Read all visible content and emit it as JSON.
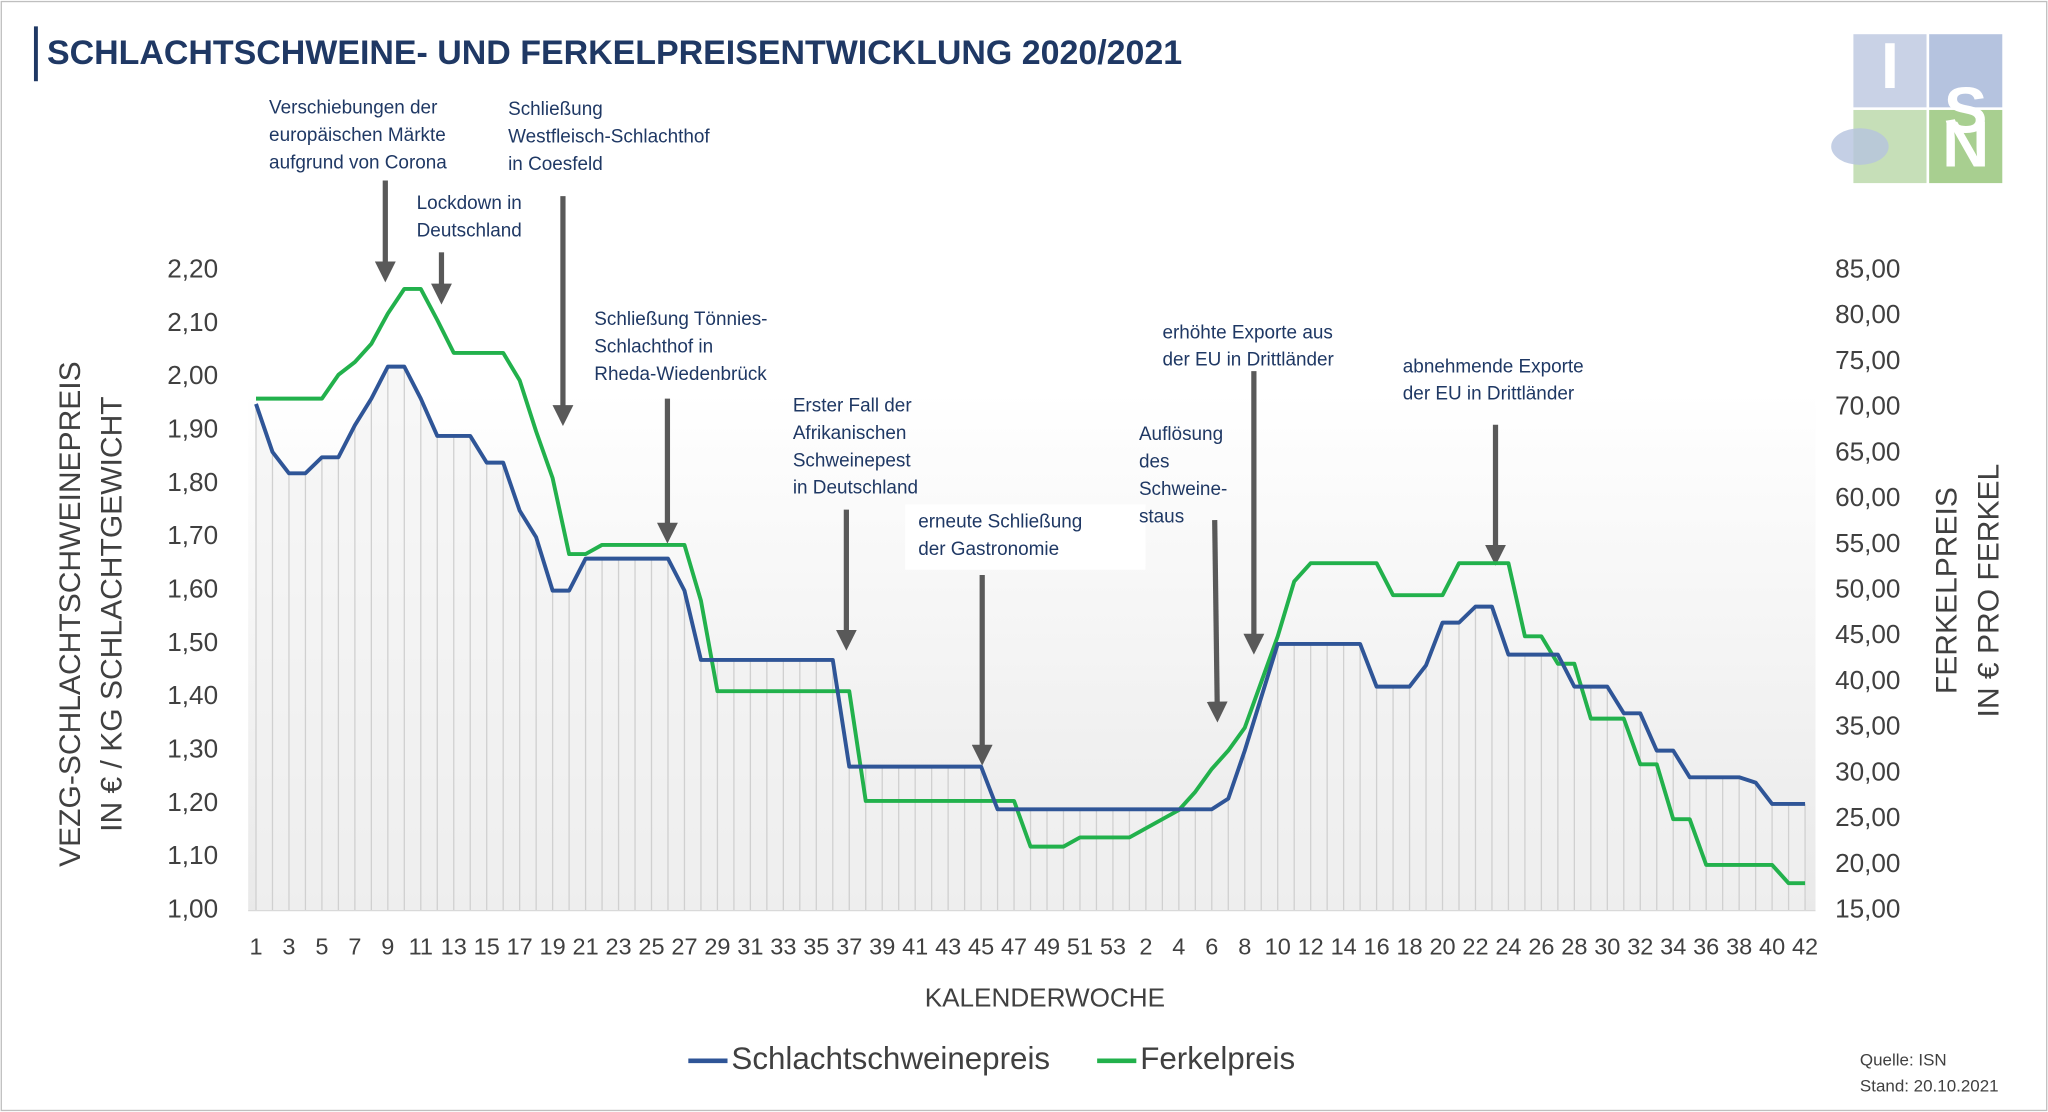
{
  "chart_data": {
    "type": "line",
    "title": "SCHLACHTSCHWEINE- UND FERKELPREISENTWICKLUNG 2020/2021",
    "ylabel": [
      "VEZG-SCHLACHTSCHWEINEPREIS",
      "IN € / KG SCHLACHTGEWICHT"
    ],
    "y2label": [
      "FERKELPREIS",
      "IN € PRO FERKEL"
    ],
    "xlabel": "KALENDERWOCHE",
    "categories": [
      "1",
      null,
      "3",
      null,
      "5",
      null,
      "7",
      null,
      "9",
      null,
      "11",
      null,
      "13",
      null,
      "15",
      null,
      "17",
      null,
      "19",
      null,
      "21",
      null,
      "23",
      null,
      "25",
      null,
      "27",
      null,
      "29",
      null,
      "31",
      null,
      "33",
      null,
      "35",
      null,
      "37",
      null,
      "39",
      null,
      "41",
      null,
      "43",
      null,
      "45",
      null,
      "47",
      null,
      "49",
      null,
      "51",
      null,
      "53",
      null,
      "2",
      null,
      "4",
      null,
      "6",
      null,
      "8",
      null,
      "10",
      null,
      "12",
      null,
      "14",
      null,
      "16",
      null,
      "18",
      null,
      "20",
      null,
      "22",
      null,
      "24",
      null,
      "26",
      null,
      "28",
      null,
      "30",
      null,
      "32",
      null,
      "34",
      null,
      "36",
      null,
      "38",
      null,
      "40",
      null,
      "42"
    ],
    "series": [
      {
        "name": "Schlachtschweinepreis",
        "color": "#2f5597",
        "values": [
          1.95,
          1.86,
          1.82,
          1.82,
          1.85,
          1.85,
          1.91,
          1.96,
          2.02,
          2.02,
          1.96,
          1.89,
          1.89,
          1.89,
          1.84,
          1.84,
          1.75,
          1.7,
          1.6,
          1.6,
          1.66,
          1.66,
          1.66,
          1.66,
          1.66,
          1.66,
          1.6,
          1.47,
          1.47,
          1.47,
          1.47,
          1.47,
          1.47,
          1.47,
          1.47,
          1.47,
          1.27,
          1.27,
          1.27,
          1.27,
          1.27,
          1.27,
          1.27,
          1.27,
          1.27,
          1.19,
          1.19,
          1.19,
          1.19,
          1.19,
          1.19,
          1.19,
          1.19,
          1.19,
          1.19,
          1.19,
          1.19,
          1.19,
          1.19,
          1.21,
          1.3,
          1.4,
          1.5,
          1.5,
          1.5,
          1.5,
          1.5,
          1.5,
          1.42,
          1.42,
          1.42,
          1.46,
          1.54,
          1.54,
          1.57,
          1.57,
          1.48,
          1.48,
          1.48,
          1.48,
          1.42,
          1.42,
          1.42,
          1.37,
          1.37,
          1.3,
          1.3,
          1.25,
          1.25,
          1.25,
          1.25,
          1.24,
          1.2,
          1.2,
          1.2
        ]
      },
      {
        "name": "Ferkelpreis",
        "color": "#22b14c",
        "axis": "y2",
        "values": [
          71,
          71,
          71,
          71,
          71,
          73.6,
          75,
          77,
          80.3,
          83,
          83,
          79.6,
          76,
          76,
          76,
          76,
          73,
          67.4,
          62.3,
          54,
          54,
          55,
          55,
          55,
          55,
          55,
          55,
          48.9,
          39,
          39,
          39,
          39,
          39,
          39,
          39,
          39,
          39,
          27,
          27,
          27,
          27,
          27,
          27,
          27,
          27,
          27,
          27,
          22,
          22,
          22,
          23,
          23,
          23,
          23,
          24,
          25,
          26,
          28,
          30.5,
          32.5,
          35,
          40,
          45,
          51,
          53,
          53,
          53,
          53,
          53,
          49.5,
          49.5,
          49.5,
          49.5,
          53,
          53,
          53,
          53,
          45,
          45,
          42,
          42,
          36,
          36,
          36,
          31,
          31,
          25,
          25,
          20,
          20,
          20,
          20,
          20,
          18,
          18
        ]
      }
    ],
    "ylim": [
      1.0,
      2.2
    ],
    "yticks": [
      {
        "value": 1.0,
        "label": "1,00"
      },
      {
        "value": 1.1,
        "label": "1,10"
      },
      {
        "value": 1.2,
        "label": "1,20"
      },
      {
        "value": 1.3,
        "label": "1,30"
      },
      {
        "value": 1.4,
        "label": "1,40"
      },
      {
        "value": 1.5,
        "label": "1,50"
      },
      {
        "value": 1.6,
        "label": "1,60"
      },
      {
        "value": 1.7,
        "label": "1,70"
      },
      {
        "value": 1.8,
        "label": "1,80"
      },
      {
        "value": 1.9,
        "label": "1,90"
      },
      {
        "value": 2.0,
        "label": "2,00"
      },
      {
        "value": 2.1,
        "label": "2,10"
      },
      {
        "value": 2.2,
        "label": "2,20"
      }
    ],
    "y2lim": [
      15,
      85
    ],
    "y2ticks": [
      {
        "value": 15,
        "label": "15,00"
      },
      {
        "value": 20,
        "label": "20,00"
      },
      {
        "value": 25,
        "label": "25,00"
      },
      {
        "value": 30,
        "label": "30,00"
      },
      {
        "value": 35,
        "label": "35,00"
      },
      {
        "value": 40,
        "label": "40,00"
      },
      {
        "value": 45,
        "label": "45,00"
      },
      {
        "value": 50,
        "label": "50,00"
      },
      {
        "value": 55,
        "label": "55,00"
      },
      {
        "value": 60,
        "label": "60,00"
      },
      {
        "value": 65,
        "label": "65,00"
      },
      {
        "value": 70,
        "label": "70,00"
      },
      {
        "value": 75,
        "label": "75,00"
      },
      {
        "value": 80,
        "label": "80,00"
      },
      {
        "value": 85,
        "label": "85,00"
      }
    ],
    "annotations": [
      [
        "Verschiebungen der",
        "europäischen Märkte",
        "aufgrund von Corona"
      ],
      [
        "Lockdown in",
        "Deutschland"
      ],
      [
        "Schließung",
        "Westfleisch-Schlachthof",
        "in Coesfeld"
      ],
      [
        "Schließung Tönnies-",
        "Schlachthof in",
        "Rheda-Wiedenbrück"
      ],
      [
        "Erster Fall der",
        "Afrikanischen",
        "Schweinepest",
        "in Deutschland"
      ],
      [
        "erneute Schließung",
        "der Gastronomie"
      ],
      [
        "Auflösung",
        "des",
        "Schweine-",
        "staus"
      ],
      [
        "erhöhte Exporte aus",
        "der EU in Drittländer"
      ],
      [
        "abnehmende Exporte",
        "der EU in Drittländer"
      ]
    ],
    "legend": "bottom",
    "source": [
      "Quelle: ISN",
      "Stand: 20.10.2021"
    ],
    "logo": [
      "I",
      "S",
      "N"
    ]
  }
}
